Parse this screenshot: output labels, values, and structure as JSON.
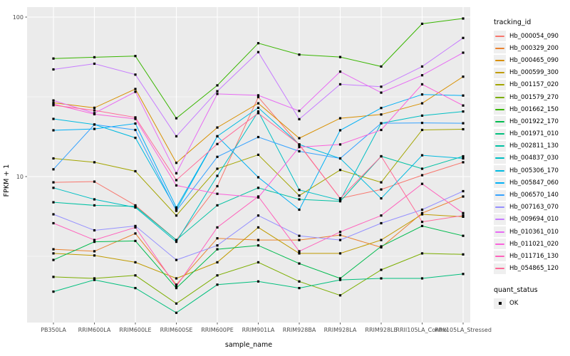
{
  "chart_data": {
    "type": "line",
    "title": "",
    "xlabel": "sample_name",
    "ylabel": "FPKM + 1",
    "y_scale": "log10",
    "y_ticks": [
      100,
      10
    ],
    "y_minor_gridlines": [
      31.62,
      3.162
    ],
    "ylim": [
      1.15,
      115
    ],
    "grid": true,
    "point_marker": "filled-square",
    "categories": [
      "PB350LA",
      "RRIM600LA",
      "RRIM600LE",
      "RRIM600SE",
      "RRIM600PE",
      "RRIM901LA",
      "RRIM928BA",
      "RRIM928LA",
      "RRIM928LE",
      "RRII105LA_Control",
      "RRII105LA_Stressed"
    ],
    "legend": {
      "title": "tracking_id",
      "position": "right"
    },
    "quant_legend": {
      "title": "quant_status",
      "items": [
        {
          "label": "OK",
          "marker": "square",
          "color": "#000000"
        }
      ]
    },
    "series": [
      {
        "name": "Hb_000054_090",
        "color": "#F8766D",
        "values": [
          9.2,
          9.3,
          6.6,
          4.0,
          8.7,
          31.5,
          15.8,
          7.3,
          8.3,
          10.2,
          12.3
        ]
      },
      {
        "name": "Hb_000329_200",
        "color": "#EA8331",
        "values": [
          3.5,
          3.4,
          4.4,
          2.1,
          4.1,
          4.0,
          4.0,
          4.3,
          3.6,
          5.9,
          7.5
        ]
      },
      {
        "name": "Hb_000465_090",
        "color": "#D89000",
        "values": [
          29,
          27,
          35.4,
          12.2,
          20.3,
          28.8,
          17.4,
          23.2,
          24.5,
          28.8,
          42.3
        ]
      },
      {
        "name": "Hb_000599_300",
        "color": "#C09B00",
        "values": [
          3.3,
          3.2,
          2.9,
          2.3,
          2.9,
          4.8,
          3.3,
          3.3,
          4.0,
          5.8,
          5.6
        ]
      },
      {
        "name": "Hb_001157_020",
        "color": "#A3A500",
        "values": [
          13.0,
          12.3,
          10.8,
          5.7,
          11.2,
          13.7,
          7.6,
          11.0,
          9.2,
          19.6,
          19.8
        ]
      },
      {
        "name": "Hb_001579_270",
        "color": "#7CAE00",
        "values": [
          2.35,
          2.3,
          2.4,
          1.6,
          2.4,
          2.9,
          2.2,
          1.8,
          2.6,
          3.3,
          3.25
        ]
      },
      {
        "name": "Hb_001662_150",
        "color": "#39B600",
        "values": [
          55,
          56,
          57,
          23.2,
          37.3,
          68.6,
          58.2,
          56.2,
          49,
          90.8,
          98
        ]
      },
      {
        "name": "Hb_001922_170",
        "color": "#00BB4E",
        "values": [
          3.0,
          3.9,
          3.95,
          2.0,
          3.5,
          3.7,
          2.85,
          2.3,
          3.65,
          4.9,
          4.25
        ]
      },
      {
        "name": "Hb_001971_010",
        "color": "#00BF7D",
        "values": [
          1.9,
          2.25,
          2.0,
          1.4,
          2.1,
          2.2,
          2.0,
          2.25,
          2.3,
          2.3,
          2.45
        ]
      },
      {
        "name": "Hb_002811_130",
        "color": "#00C1A3",
        "values": [
          6.9,
          6.6,
          6.5,
          4.0,
          6.6,
          8.5,
          7.2,
          7.0,
          13.4,
          11.2,
          13.4
        ]
      },
      {
        "name": "Hb_004837_030",
        "color": "#00BFC4",
        "values": [
          8.5,
          7.2,
          6.4,
          3.9,
          10.1,
          25.6,
          8.25,
          7.1,
          21.6,
          24.1,
          25.6
        ]
      },
      {
        "name": "Hb_005306_170",
        "color": "#00BAE0",
        "values": [
          23,
          21.2,
          17.5,
          6.2,
          17.9,
          27,
          15.9,
          13.0,
          7.3,
          13.6,
          13.0
        ]
      },
      {
        "name": "Hb_005847_060",
        "color": "#00B0F6",
        "values": [
          19.5,
          19.9,
          21.5,
          6.4,
          17.9,
          9.9,
          6.2,
          19.5,
          26.9,
          32.7,
          32.2
        ]
      },
      {
        "name": "Hb_006570_140",
        "color": "#35A2FF",
        "values": [
          11.1,
          21.2,
          19.6,
          6.1,
          13.3,
          17.7,
          14.4,
          13.0,
          21.6,
          21.7,
          21.6
        ]
      },
      {
        "name": "Hb_007163_070",
        "color": "#9590FF",
        "values": [
          5.8,
          4.6,
          4.9,
          3.0,
          3.7,
          5.7,
          4.25,
          4.0,
          5.1,
          6.2,
          8.1
        ]
      },
      {
        "name": "Hb_009694_010",
        "color": "#C77CFF",
        "values": [
          47,
          51,
          43.6,
          17.9,
          34.3,
          60.3,
          22.9,
          37.9,
          36.6,
          49,
          74
        ]
      },
      {
        "name": "Hb_010361_010",
        "color": "#E76BF3",
        "values": [
          30,
          25,
          34,
          10.5,
          33,
          32.3,
          25.8,
          45.5,
          33.6,
          43.2,
          59.8
        ]
      },
      {
        "name": "Hb_011021_020",
        "color": "#FA62DB",
        "values": [
          28.5,
          24.6,
          23.0,
          8.8,
          7.8,
          7.4,
          15.3,
          15.9,
          19.6,
          37.9,
          27.9
        ]
      },
      {
        "name": "Hb_011716_130",
        "color": "#FF62BC",
        "values": [
          5.1,
          4.0,
          4.8,
          2.05,
          4.8,
          7.5,
          3.4,
          4.5,
          5.7,
          9.0,
          5.9
        ]
      },
      {
        "name": "Hb_054865_120",
        "color": "#FF6A98",
        "values": [
          28,
          26,
          23.5,
          9.5,
          16,
          25,
          15.9,
          7.3,
          13.4,
          5.2,
          5.7
        ]
      }
    ],
    "style": {
      "panel_bg": "#EBEBEB",
      "grid_color": "#FFFFFF",
      "tick_color": "#333333",
      "tick_label_color": "#4D4D4D",
      "axis_title_color": "#000000"
    }
  }
}
